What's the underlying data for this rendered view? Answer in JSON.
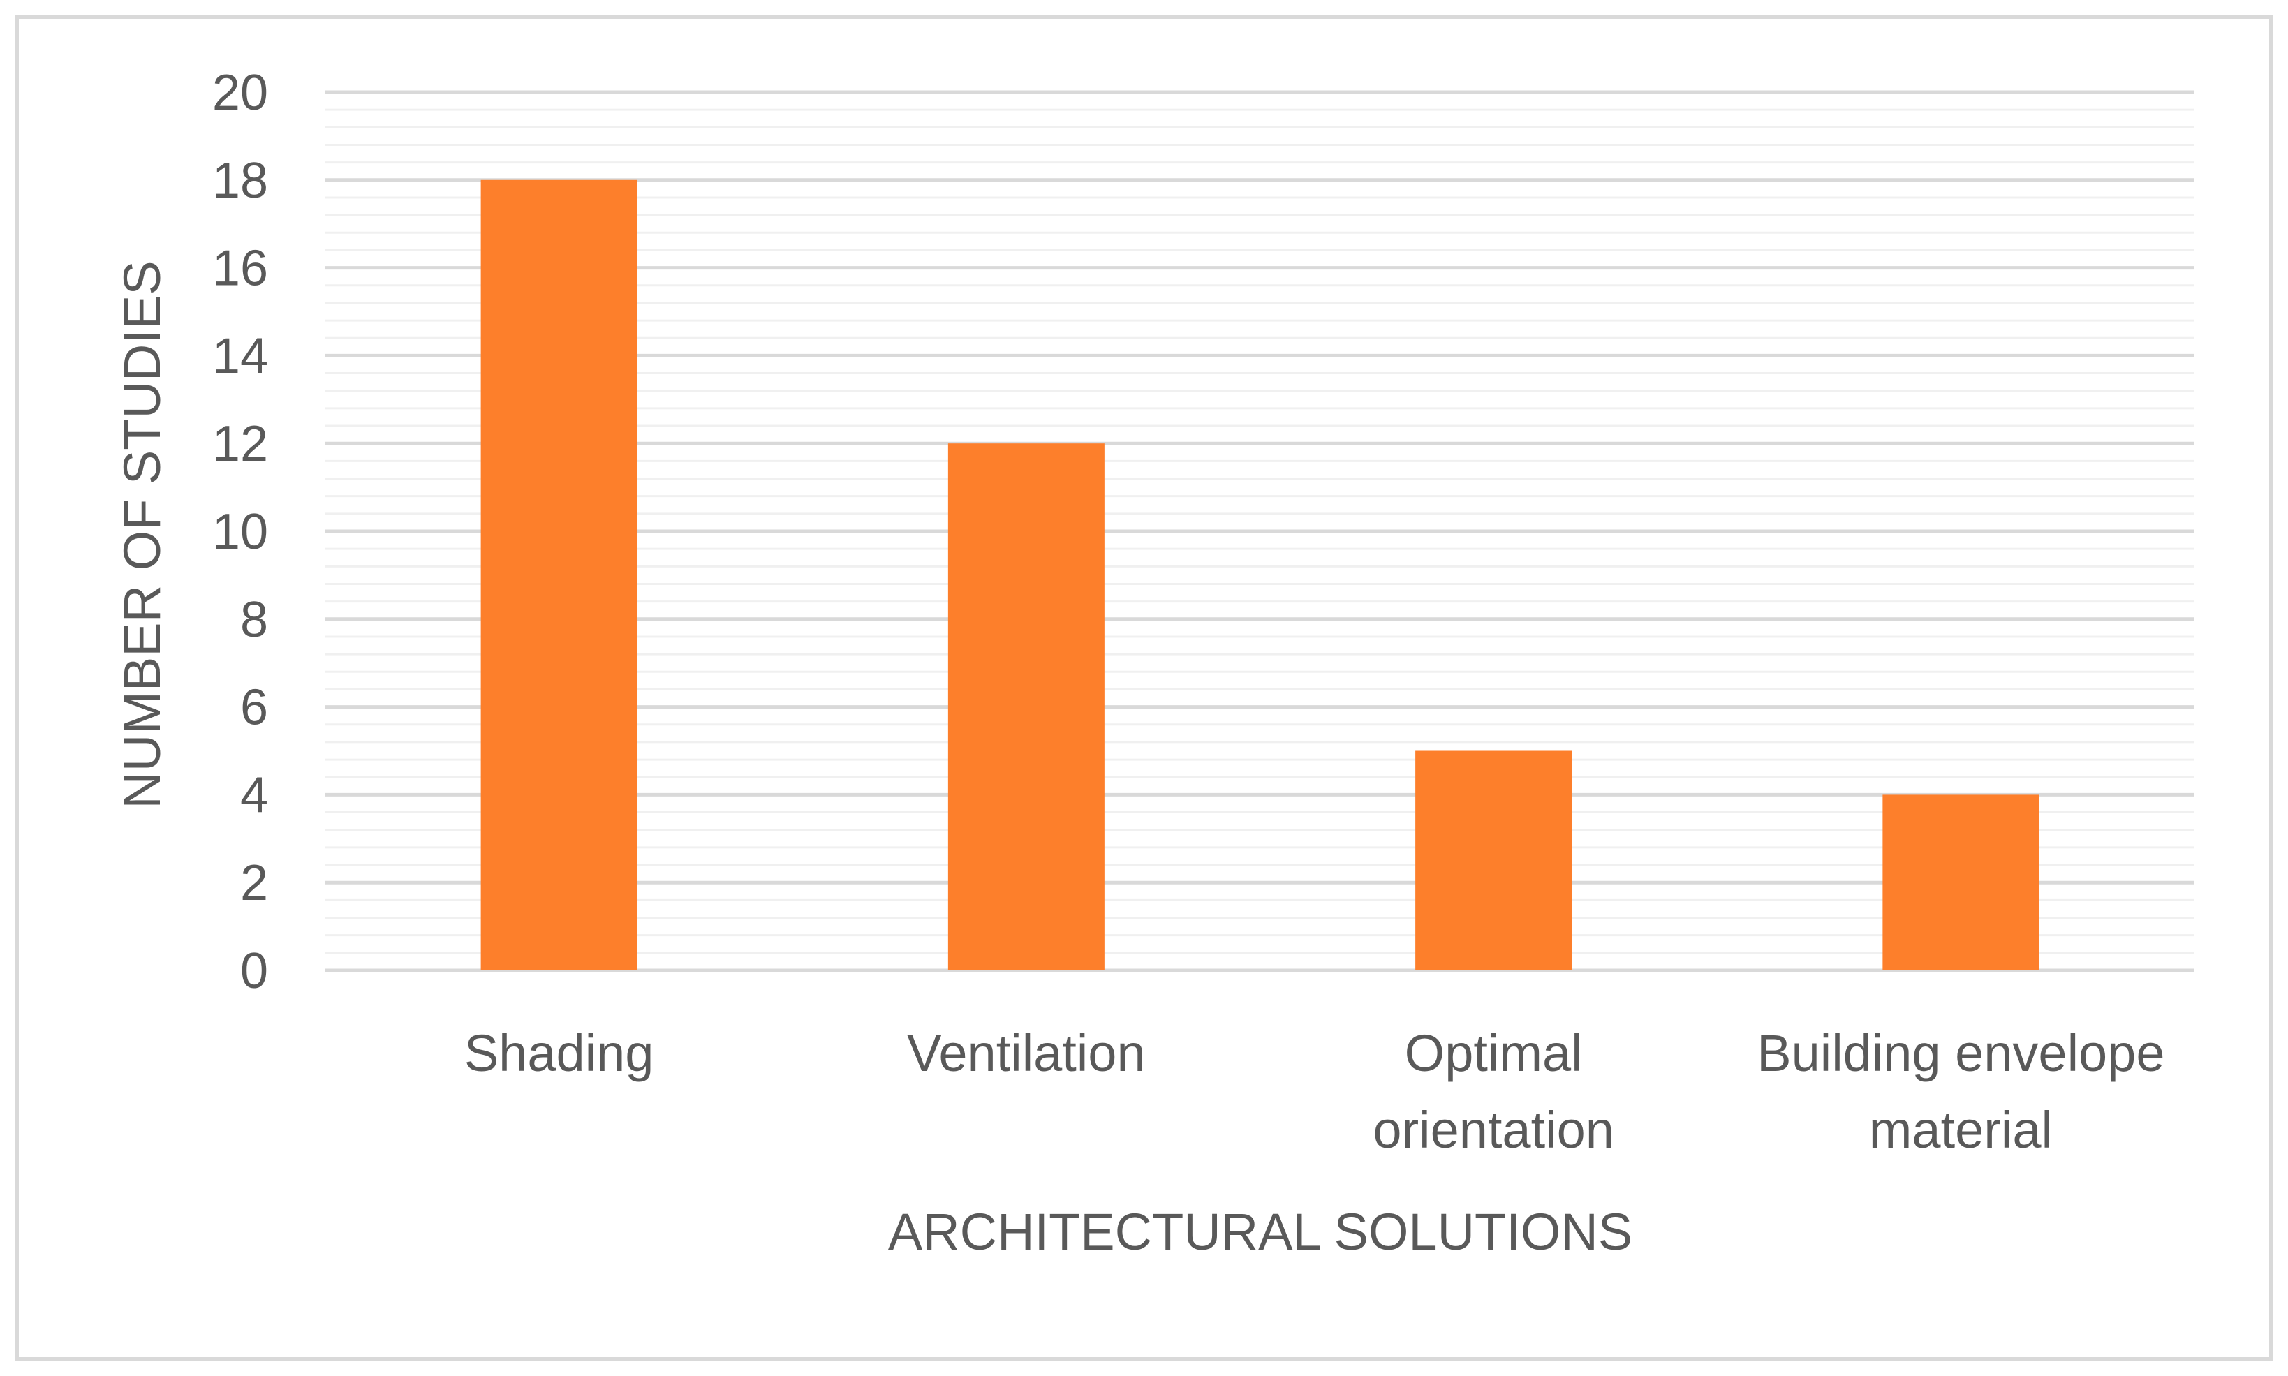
{
  "chart_data": {
    "type": "bar",
    "title": "",
    "xlabel": "ARCHITECTURAL SOLUTIONS",
    "ylabel": "NUMBER OF STUDIES",
    "categories": [
      [
        "Shading"
      ],
      [
        "Ventilation"
      ],
      [
        "Optimal",
        "orientation"
      ],
      [
        "Building envelope",
        "material"
      ]
    ],
    "values": [
      18,
      12,
      5,
      4
    ],
    "ylim": [
      0,
      20
    ],
    "yticks": [
      0,
      2,
      4,
      6,
      8,
      10,
      12,
      14,
      16,
      18,
      20
    ],
    "minor_gridlines": true,
    "grid": true,
    "legend": "none",
    "bar_color": "#fd7f2b",
    "gridline_color": "#d9d9d9",
    "text_color": "#595959"
  }
}
